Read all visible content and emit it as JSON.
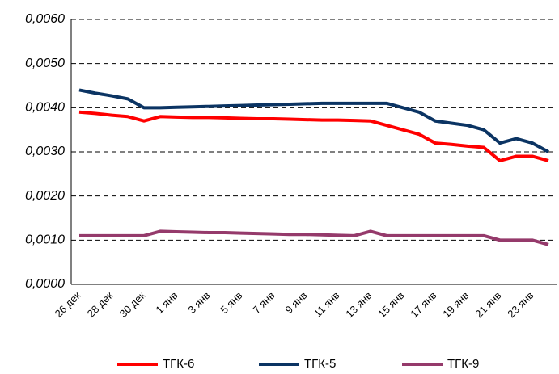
{
  "chart_data": {
    "type": "line",
    "categories": [
      "26 дек",
      null,
      "28 дек",
      null,
      "30 дек",
      null,
      "1 янв",
      null,
      "3 янв",
      null,
      "5 янв",
      null,
      "7 янв",
      null,
      "9 янв",
      null,
      "11 янв",
      null,
      "13 янв",
      null,
      "15 янв",
      null,
      "17 янв",
      null,
      "19 янв",
      null,
      "21 янв",
      null,
      "23 янв",
      null
    ],
    "series": [
      {
        "name": "ТГК-6",
        "color": "#ff0000",
        "values": [
          0.0039,
          0.00387,
          0.00383,
          0.0038,
          0.0037,
          0.0038,
          0.00379,
          0.00378,
          0.00378,
          0.00377,
          0.00376,
          0.00375,
          0.00375,
          0.00374,
          0.00373,
          0.00372,
          0.00372,
          0.00371,
          0.0037,
          0.0036,
          0.0035,
          0.0034,
          0.0032,
          0.00317,
          0.00313,
          0.0031,
          0.0028,
          0.0029,
          0.0029,
          0.0028
        ]
      },
      {
        "name": "ТГК-5",
        "color": "#0b3463",
        "values": [
          0.0044,
          0.00433,
          0.00427,
          0.0042,
          0.004,
          0.004,
          0.00401,
          0.00402,
          0.00403,
          0.00404,
          0.00405,
          0.00406,
          0.00407,
          0.00408,
          0.00409,
          0.0041,
          0.0041,
          0.0041,
          0.0041,
          0.0041,
          0.004,
          0.0039,
          0.0037,
          0.00365,
          0.0036,
          0.0035,
          0.0032,
          0.0033,
          0.0032,
          0.003
        ]
      },
      {
        "name": "ТГК-9",
        "color": "#953a6b",
        "values": [
          0.0011,
          0.0011,
          0.0011,
          0.0011,
          0.0011,
          0.0012,
          0.00119,
          0.00118,
          0.00117,
          0.00117,
          0.00116,
          0.00115,
          0.00114,
          0.00113,
          0.00113,
          0.00112,
          0.00111,
          0.0011,
          0.0012,
          0.0011,
          0.0011,
          0.0011,
          0.0011,
          0.0011,
          0.0011,
          0.0011,
          0.001,
          0.001,
          0.001,
          0.0009
        ]
      }
    ],
    "ylim": [
      0,
      0.006
    ],
    "yticks": [
      {
        "value": 0,
        "label": "0,0000"
      },
      {
        "value": 0.001,
        "label": "0,0010"
      },
      {
        "value": 0.002,
        "label": "0,0020"
      },
      {
        "value": 0.003,
        "label": "0,0030"
      },
      {
        "value": 0.004,
        "label": "0,0040"
      },
      {
        "value": 0.005,
        "label": "0,0050"
      },
      {
        "value": 0.006,
        "label": "0,0060"
      }
    ],
    "grid": true
  }
}
